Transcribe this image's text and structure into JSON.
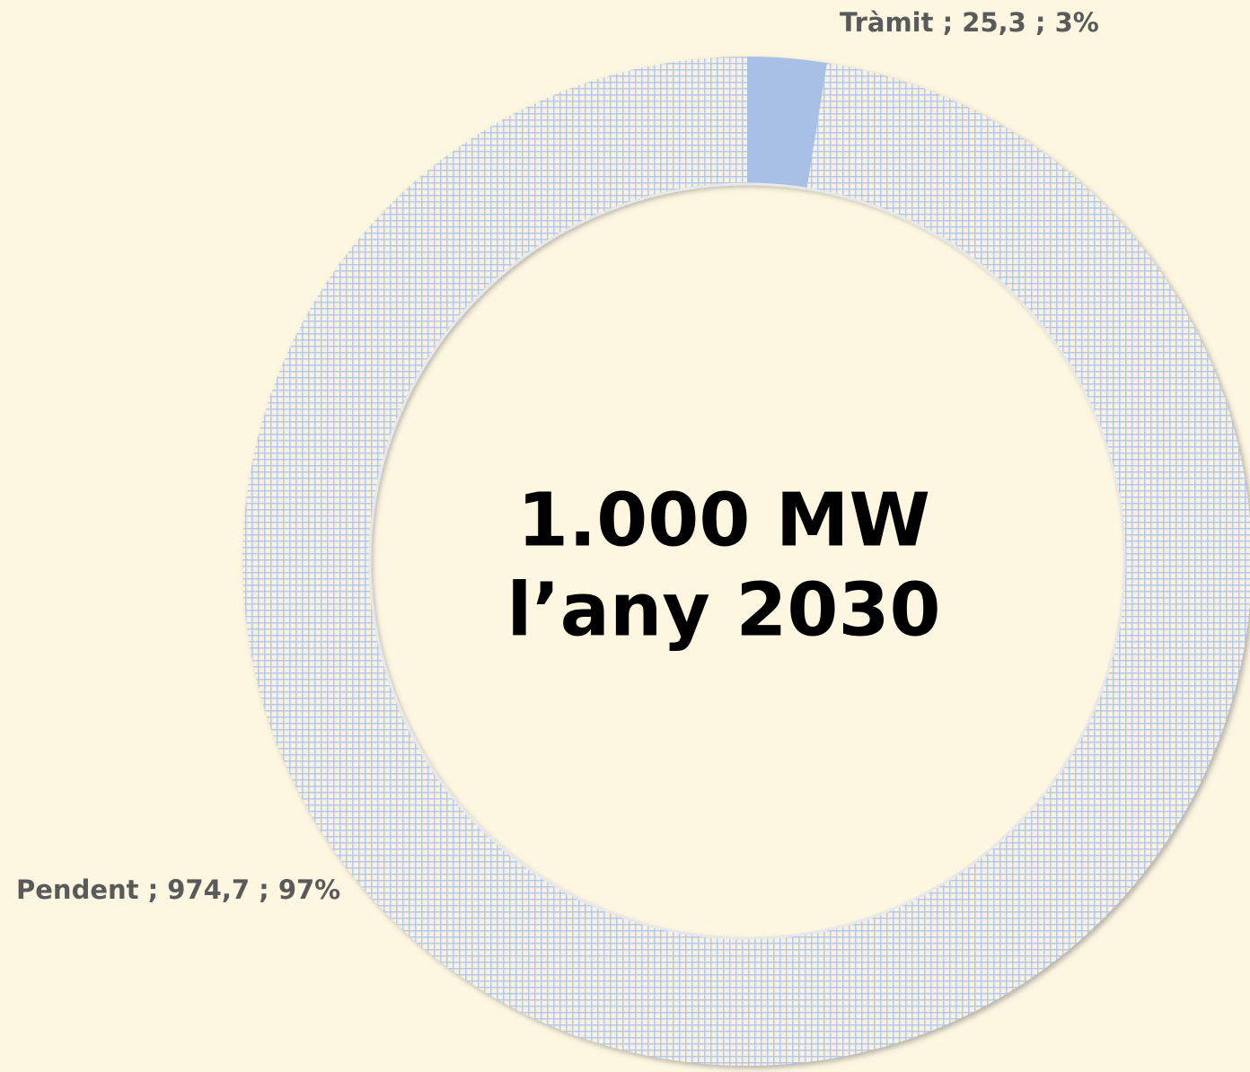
{
  "chart_data": {
    "type": "donut",
    "categories": [
      "Tràmit",
      "Pendent"
    ],
    "values": [
      25.3,
      974.7
    ],
    "value_labels": [
      "Tràmit ; 25,3 ; 3%",
      "Pendent ; 974,7 ; 97%"
    ],
    "colors": [
      "#a9c0e6",
      "#b7c9e8"
    ],
    "patterns": [
      "solid",
      "grid"
    ],
    "center_text": [
      "1.000 MW",
      "l’any 2030"
    ]
  }
}
